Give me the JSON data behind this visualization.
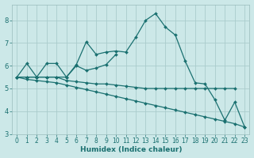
{
  "xlabel": "Humidex (Indice chaleur)",
  "ylabel": "",
  "bg_color": "#cce8e8",
  "grid_color": "#aacccc",
  "line_color": "#1a7070",
  "xlim": [
    -0.5,
    23.5
  ],
  "ylim": [
    3.0,
    8.7
  ],
  "yticks": [
    3,
    4,
    5,
    6,
    7,
    8
  ],
  "xticks": [
    0,
    1,
    2,
    3,
    4,
    5,
    6,
    7,
    8,
    9,
    10,
    11,
    12,
    13,
    14,
    15,
    16,
    17,
    18,
    19,
    20,
    21,
    22,
    23
  ],
  "lines": [
    {
      "x": [
        0,
        1,
        2,
        3,
        4,
        5,
        6,
        7,
        8,
        9,
        10,
        11,
        12,
        13,
        14,
        15,
        16,
        17,
        18,
        19,
        20,
        21,
        22,
        23
      ],
      "y": [
        5.5,
        6.1,
        5.5,
        6.1,
        6.1,
        5.5,
        6.05,
        7.05,
        6.5,
        6.6,
        6.65,
        6.6,
        7.25,
        8.0,
        8.3,
        7.7,
        7.35,
        6.2,
        5.25,
        5.2,
        4.5,
        3.6,
        4.4,
        3.3
      ]
    },
    {
      "x": [
        0,
        1,
        2,
        3,
        4,
        5,
        6,
        7,
        8,
        9,
        10,
        11,
        12,
        13,
        14,
        15,
        16,
        17,
        18,
        19,
        20,
        21,
        22
      ],
      "y": [
        5.5,
        5.5,
        5.5,
        5.5,
        5.5,
        5.35,
        5.3,
        5.25,
        5.2,
        5.2,
        5.15,
        5.1,
        5.05,
        5.0,
        5.0,
        5.0,
        5.0,
        5.0,
        5.0,
        5.0,
        5.0,
        5.0,
        5.0
      ]
    },
    {
      "x": [
        0,
        1,
        2,
        3,
        4,
        5,
        6,
        7,
        8,
        9,
        10,
        11,
        12,
        13,
        14,
        15,
        16,
        17,
        18,
        19,
        20,
        21,
        22,
        23
      ],
      "y": [
        5.5,
        5.4,
        5.35,
        5.3,
        5.25,
        5.15,
        5.05,
        4.95,
        4.85,
        4.75,
        4.65,
        4.55,
        4.45,
        4.35,
        4.25,
        4.15,
        4.05,
        3.95,
        3.85,
        3.75,
        3.65,
        3.55,
        3.45,
        3.3
      ]
    },
    {
      "x": [
        0,
        1,
        2,
        3,
        4,
        5,
        6,
        7,
        8,
        9,
        10
      ],
      "y": [
        5.5,
        5.5,
        5.5,
        5.5,
        5.5,
        5.5,
        6.0,
        5.8,
        5.9,
        6.05,
        6.5
      ]
    }
  ]
}
